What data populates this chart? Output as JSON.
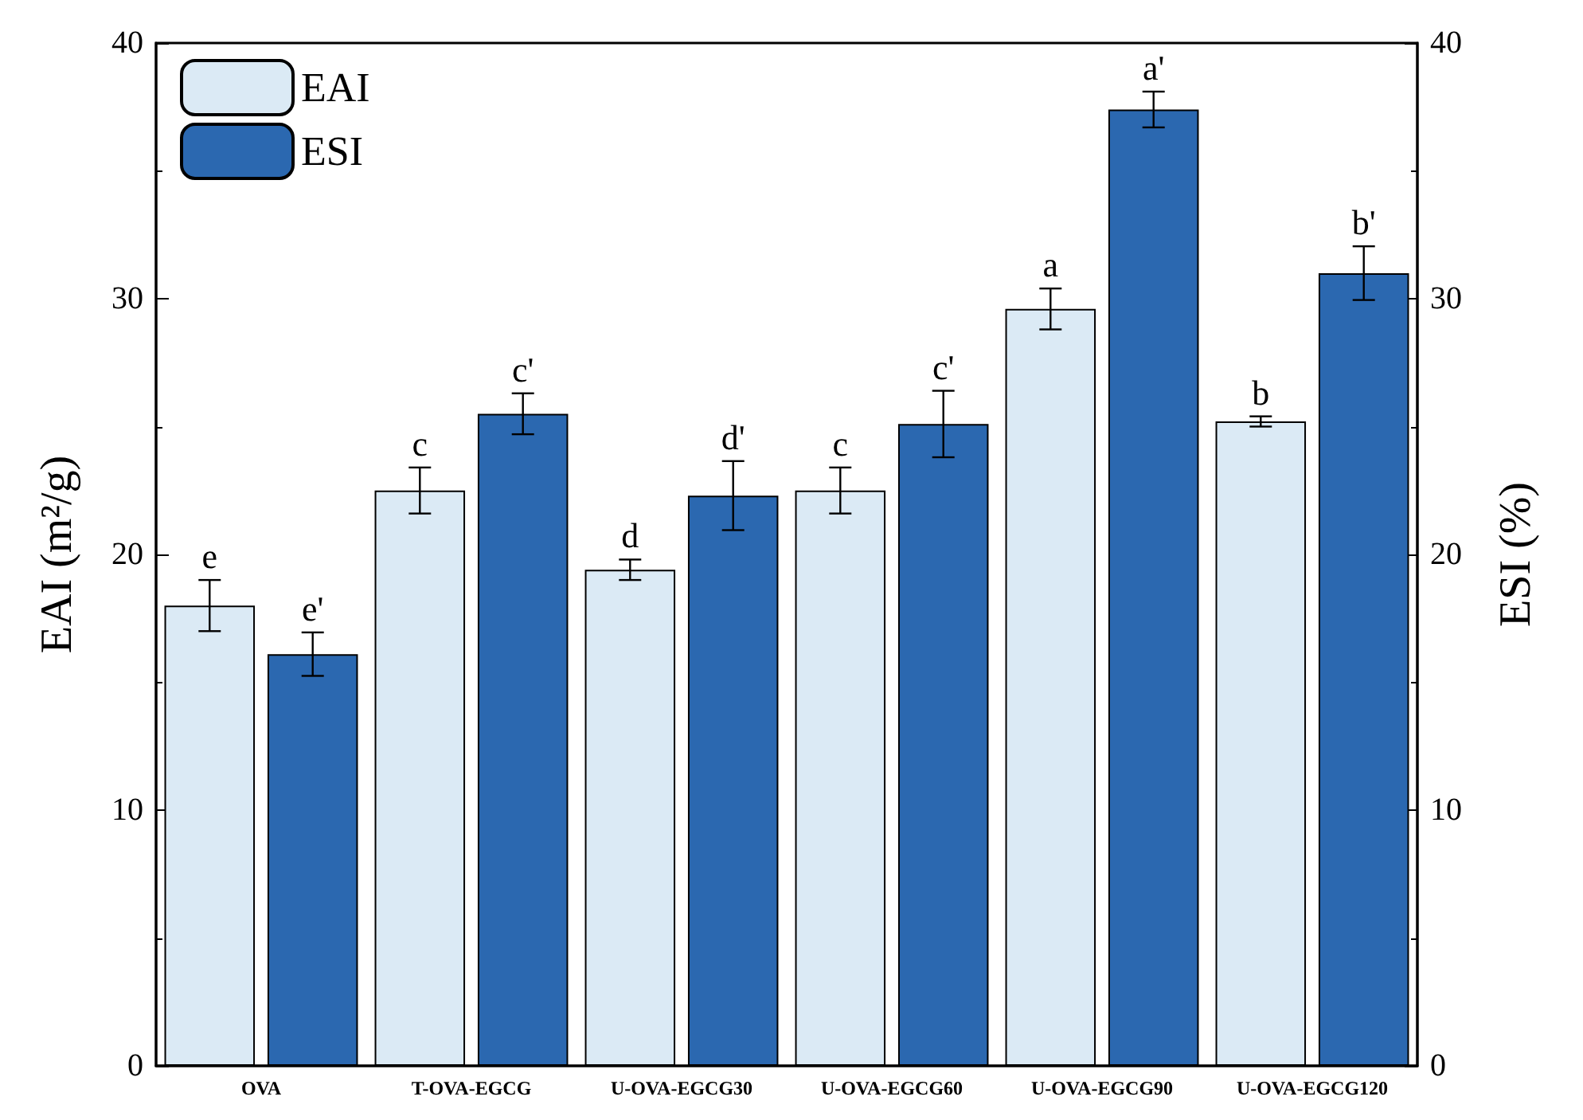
{
  "chart_data": {
    "type": "bar",
    "ylabel": "EAI (m²/g)",
    "y2label": "ESI (%)",
    "categories": [
      "OVA",
      "T-OVA-EGCG",
      "U-OVA-EGCG30",
      "U-OVA-EGCG60",
      "U-OVA-EGCG90",
      "U-OVA-EGCG120"
    ],
    "series": [
      {
        "name": "EAI",
        "color": "#dbeaf5",
        "values": [
          18.0,
          22.5,
          19.4,
          22.5,
          29.6,
          25.2
        ],
        "errors": [
          1.0,
          0.9,
          0.4,
          0.9,
          0.8,
          0.2
        ]
      },
      {
        "name": "ESI",
        "color": "#2b68b0",
        "axis": "y2",
        "values": [
          16.1,
          25.5,
          22.3,
          25.1,
          37.4,
          31.0
        ],
        "errors": [
          0.85,
          0.8,
          1.35,
          1.3,
          0.7,
          1.05
        ]
      }
    ],
    "ylim": [
      0,
      40
    ],
    "yticks": [
      0,
      10,
      20,
      30,
      40
    ],
    "y2lim": [
      0,
      40
    ],
    "y2ticks": [
      0,
      10,
      20,
      30,
      40
    ],
    "annotations": [
      {
        "text": "e",
        "x": "OVA",
        "y": 18.0
      },
      {
        "text": "e'",
        "x": "OVA",
        "y": 16.1
      },
      {
        "text": "c",
        "x": "T-OVA-EGCG",
        "y": 22.5
      },
      {
        "text": "c'",
        "x": "T-OVA-EGCG",
        "y": 25.5
      },
      {
        "text": "d",
        "x": "U-OVA-EGCG30",
        "y": 19.4
      },
      {
        "text": "d'",
        "x": "U-OVA-EGCG30",
        "y": 22.3
      },
      {
        "text": "c",
        "x": "U-OVA-EGCG60",
        "y": 22.5
      },
      {
        "text": "c'",
        "x": "U-OVA-EGCG60",
        "y": 25.1
      },
      {
        "text": "a",
        "x": "U-OVA-EGCG90",
        "y": 29.6
      },
      {
        "text": "a'",
        "x": "U-OVA-EGCG90",
        "y": 37.4
      },
      {
        "text": "b",
        "x": "U-OVA-EGCG120",
        "y": 25.2
      },
      {
        "text": "b'",
        "x": "U-OVA-EGCG120",
        "y": 31.0
      }
    ],
    "legend": "top left",
    "grid": false
  }
}
